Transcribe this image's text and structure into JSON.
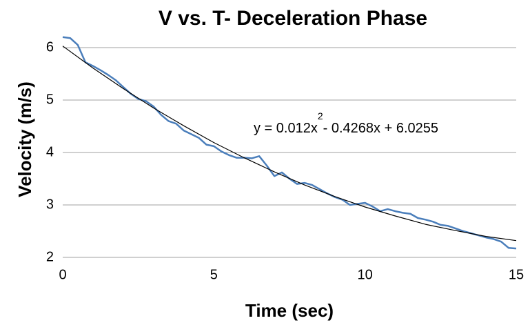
{
  "chart_data": {
    "type": "line",
    "title": "V vs. T- Deceleration Phase",
    "x_label": "Time (sec)",
    "y_label": "Velocity (m/s)",
    "xlim": [
      0,
      15
    ],
    "xticks": [
      0,
      5,
      10,
      15
    ],
    "ylim": [
      2,
      6.5
    ],
    "yticks": [
      2,
      3,
      4,
      5,
      6
    ],
    "grid": true,
    "series": [
      {
        "color": "#4a7ebb",
        "x": [
          0,
          0.25,
          0.5,
          0.75,
          1,
          1.25,
          1.5,
          1.75,
          2,
          2.25,
          2.5,
          2.75,
          3,
          3.25,
          3.5,
          3.75,
          4,
          4.25,
          4.5,
          4.75,
          5,
          5.25,
          5.5,
          5.75,
          6,
          6.25,
          6.5,
          6.75,
          7,
          7.25,
          7.5,
          7.75,
          8,
          8.25,
          8.5,
          8.75,
          9,
          9.25,
          9.5,
          9.75,
          10,
          10.25,
          10.5,
          10.75,
          11,
          11.25,
          11.5,
          11.75,
          12,
          12.25,
          12.5,
          12.75,
          13,
          13.25,
          13.5,
          13.75,
          14,
          14.25,
          14.5,
          14.75,
          15
        ],
        "values": [
          6.2,
          6.18,
          6.05,
          5.72,
          5.65,
          5.57,
          5.48,
          5.38,
          5.25,
          5.12,
          5.02,
          4.98,
          4.88,
          4.72,
          4.6,
          4.55,
          4.42,
          4.35,
          4.28,
          4.15,
          4.12,
          4.02,
          3.95,
          3.9,
          3.9,
          3.89,
          3.93,
          3.75,
          3.55,
          3.62,
          3.5,
          3.4,
          3.42,
          3.38,
          3.3,
          3.22,
          3.15,
          3.1,
          3.0,
          3.02,
          3.04,
          2.97,
          2.88,
          2.92,
          2.88,
          2.85,
          2.83,
          2.75,
          2.72,
          2.68,
          2.62,
          2.6,
          2.55,
          2.5,
          2.46,
          2.42,
          2.38,
          2.35,
          2.3,
          2.18,
          2.17
        ]
      },
      {
        "color": "#000000",
        "x": [
          0,
          1,
          2,
          3,
          4,
          5,
          6,
          7,
          8,
          9,
          10,
          11,
          12,
          13,
          14,
          15
        ],
        "values": [
          6.03,
          5.61,
          5.22,
          4.85,
          4.51,
          4.19,
          3.9,
          3.63,
          3.38,
          3.16,
          2.96,
          2.79,
          2.63,
          2.51,
          2.4,
          2.32
        ]
      }
    ],
    "annotation": {
      "text": "y = 0.012x",
      "exponent": "2",
      "rest": "- 0.4268x + 6.0255"
    }
  }
}
